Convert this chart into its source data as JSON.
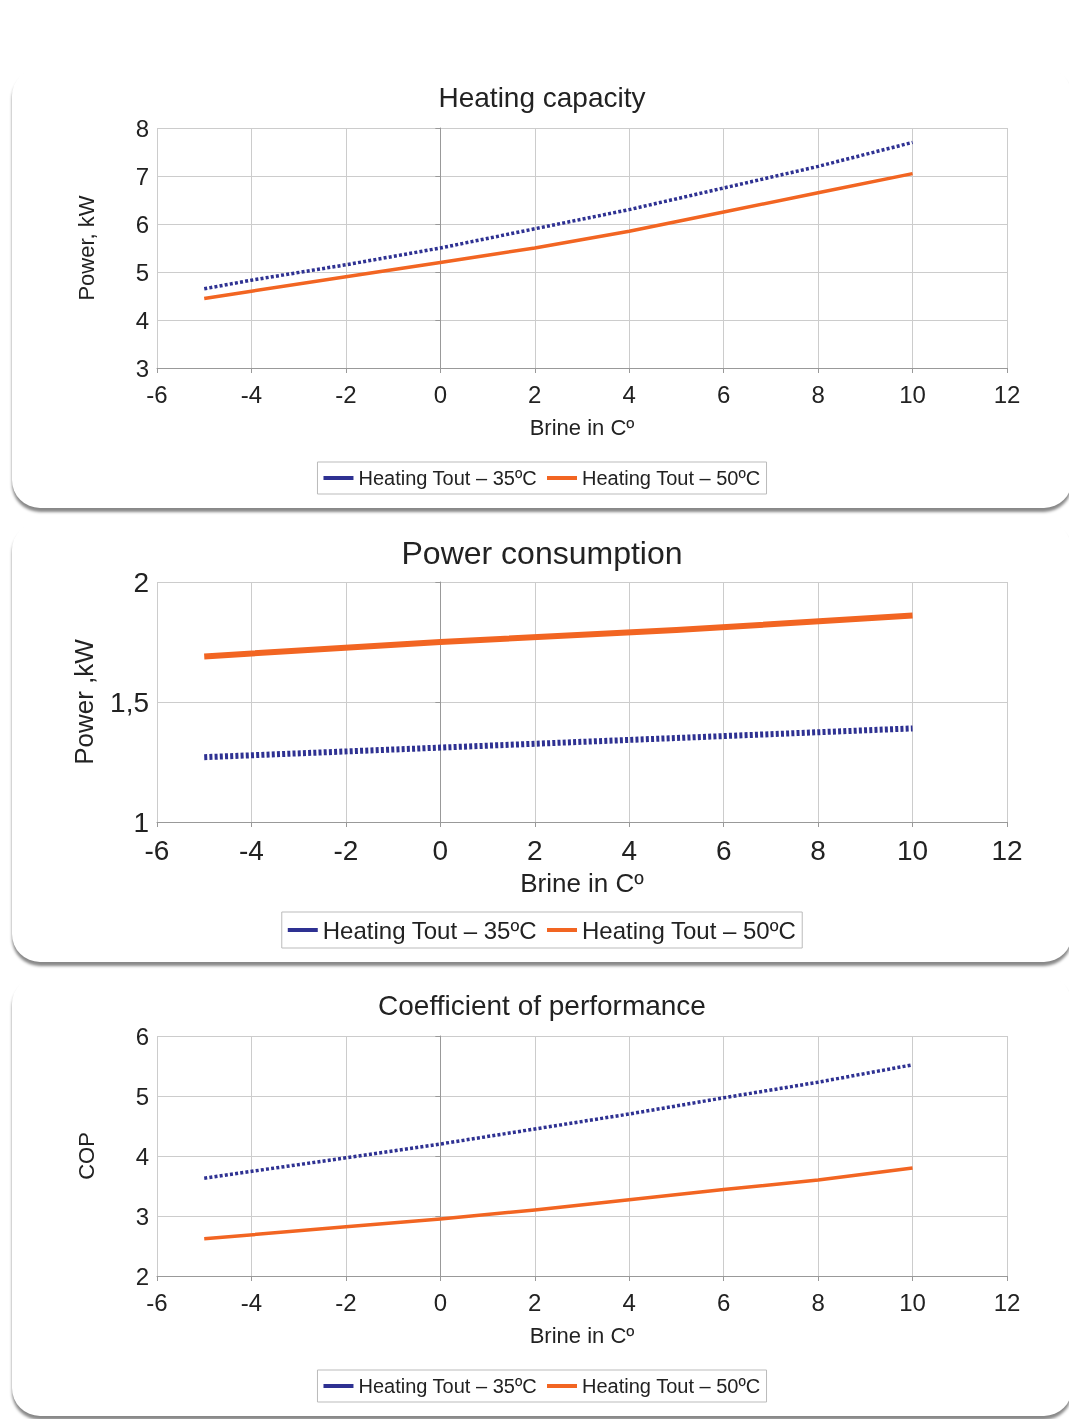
{
  "chart_data": [
    {
      "type": "line",
      "title": "Heating capacity",
      "xlabel": "Brine in Cº",
      "ylabel": "Power, kW",
      "x": [
        -5,
        -4,
        -2,
        0,
        2,
        4,
        6,
        8,
        10
      ],
      "xlim": [
        -6,
        12
      ],
      "xticks": [
        -6,
        -4,
        -2,
        0,
        2,
        4,
        6,
        8,
        10,
        12
      ],
      "ylim": [
        3,
        8
      ],
      "yticks": [
        3,
        4,
        5,
        6,
        7,
        8
      ],
      "grid": true,
      "legend": "bottom",
      "marker": "none",
      "series": [
        {
          "name": "Heating Tout – 35ºC",
          "color": "#2e3192",
          "line_style": "dashed",
          "values": [
            4.65,
            4.83,
            5.15,
            5.5,
            5.9,
            6.3,
            6.75,
            7.2,
            7.7
          ]
        },
        {
          "name": "Heating Tout – 50ºC",
          "color": "#f26522",
          "line_style": "solid",
          "values": [
            4.45,
            4.6,
            4.9,
            5.2,
            5.5,
            5.85,
            6.25,
            6.65,
            7.05
          ]
        }
      ]
    },
    {
      "type": "line",
      "title": "Power consumption",
      "xlabel": "Brine in Cº",
      "ylabel": "Power ,kW",
      "x": [
        -5,
        0,
        5,
        10
      ],
      "xlim": [
        -6,
        12
      ],
      "xticks": [
        -6,
        -4,
        -2,
        0,
        2,
        4,
        6,
        8,
        10,
        12
      ],
      "ylim": [
        1,
        2
      ],
      "yticks": [
        1,
        {
          "value": 1.5,
          "label": "1,5"
        },
        2
      ],
      "grid": true,
      "legend": "bottom",
      "marker": "none",
      "series": [
        {
          "name": "Heating Tout – 35ºC",
          "color": "#2e3192",
          "line_style": "dashed",
          "values": [
            1.27,
            1.31,
            1.35,
            1.39
          ]
        },
        {
          "name": "Heating Tout – 50ºC",
          "color": "#f26522",
          "line_style": "solid",
          "values": [
            1.69,
            1.75,
            1.8,
            1.86
          ]
        }
      ]
    },
    {
      "type": "line",
      "title": "Coefficient of performance",
      "xlabel": "Brine in Cº",
      "ylabel": "COP",
      "x": [
        -5,
        -2,
        0,
        2,
        4,
        6,
        8,
        10
      ],
      "xlim": [
        -6,
        12
      ],
      "xticks": [
        -6,
        -4,
        -2,
        0,
        2,
        4,
        6,
        8,
        10,
        12
      ],
      "ylim": [
        2,
        6
      ],
      "yticks": [
        2,
        3,
        4,
        5,
        6
      ],
      "grid": true,
      "legend": "bottom",
      "marker": "none",
      "series": [
        {
          "name": "Heating Tout – 35ºC",
          "color": "#2e3192",
          "line_style": "dashed",
          "values": [
            3.63,
            3.97,
            4.2,
            4.45,
            4.7,
            4.97,
            5.23,
            5.52
          ]
        },
        {
          "name": "Heating Tout – 50ºC",
          "color": "#f26522",
          "line_style": "solid",
          "values": [
            2.62,
            2.82,
            2.95,
            3.1,
            3.27,
            3.44,
            3.6,
            3.8
          ]
        }
      ]
    }
  ]
}
